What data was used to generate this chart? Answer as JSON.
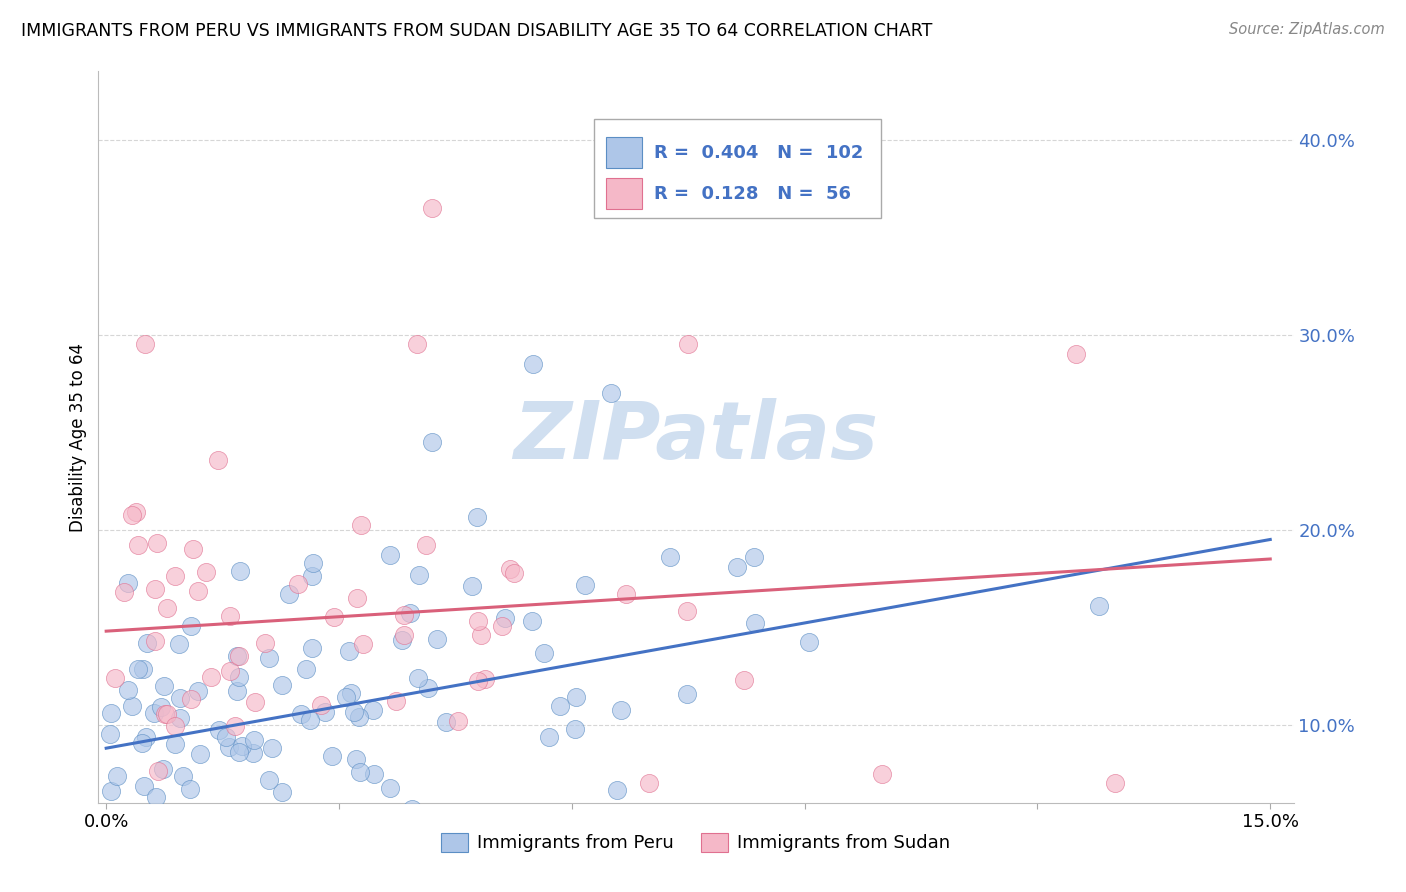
{
  "title": "IMMIGRANTS FROM PERU VS IMMIGRANTS FROM SUDAN DISABILITY AGE 35 TO 64 CORRELATION CHART",
  "source": "Source: ZipAtlas.com",
  "ylabel": "Disability Age 35 to 64",
  "legend_peru_label": "Immigrants from Peru",
  "legend_sudan_label": "Immigrants from Sudan",
  "peru_R": 0.404,
  "peru_N": 102,
  "sudan_R": 0.128,
  "sudan_N": 56,
  "xlim": [
    -0.001,
    0.153
  ],
  "ylim": [
    0.06,
    0.435
  ],
  "xticks": [
    0.0,
    0.15
  ],
  "xtick_labels": [
    "0.0%",
    "15.0%"
  ],
  "ytick_vals": [
    0.1,
    0.2,
    0.3,
    0.4
  ],
  "ytick_labels": [
    "10.0%",
    "20.0%",
    "30.0%",
    "40.0%"
  ],
  "peru_color": "#aec6e8",
  "peru_edge_color": "#5b8ec4",
  "peru_line_color": "#4472c4",
  "sudan_color": "#f5b8c8",
  "sudan_edge_color": "#e07090",
  "sudan_line_color": "#d9607a",
  "watermark_color": "#d0dff0",
  "grid_color": "#cccccc",
  "peru_line_y0": 0.088,
  "peru_line_y1": 0.195,
  "sudan_line_y0": 0.148,
  "sudan_line_y1": 0.185
}
